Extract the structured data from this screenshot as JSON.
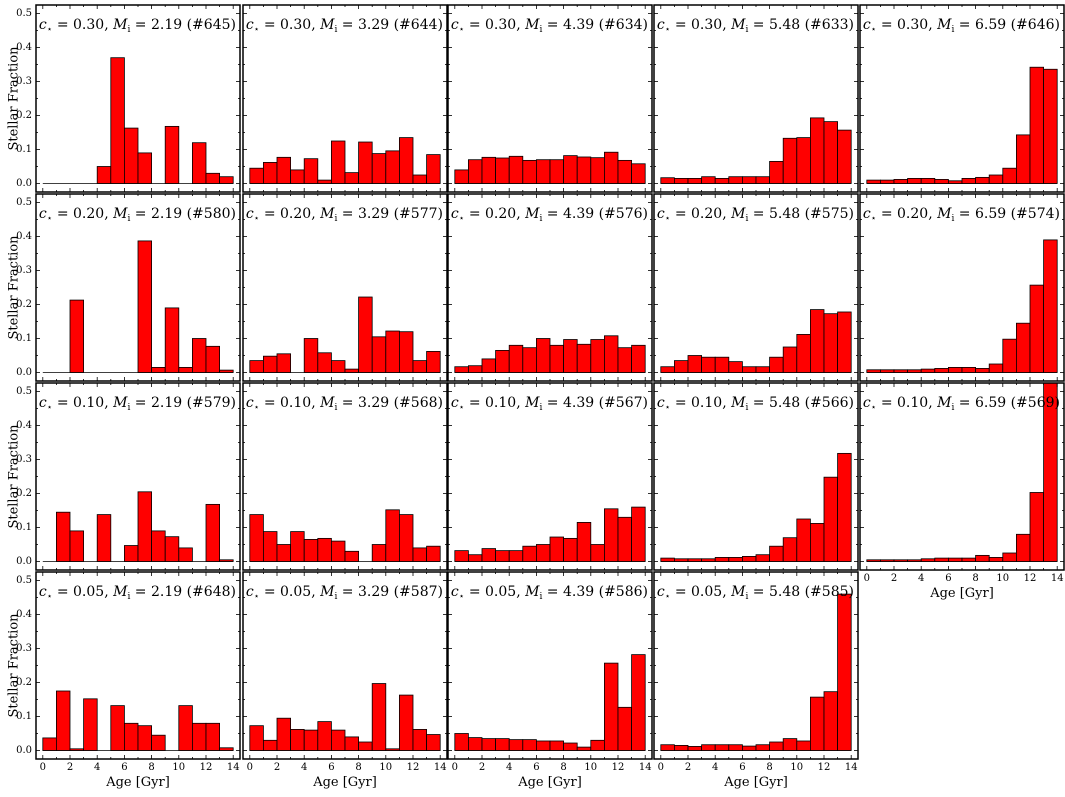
{
  "figure": {
    "ylabel": "Stellar Fraction",
    "xlabel": "Age [Gyr]",
    "bar_color": "#ff0000",
    "edge_color": "#000000",
    "xlim": [
      -0.5,
      14.5
    ],
    "ylim": [
      -0.025,
      0.525
    ],
    "xticks": [
      "0",
      "2",
      "4",
      "6",
      "8",
      "10",
      "12",
      "14"
    ],
    "yticks": [
      "0.0",
      "0.1",
      "0.2",
      "0.3",
      "0.4",
      "0.5"
    ],
    "bin_edges": [
      0,
      1,
      2,
      3,
      4,
      5,
      6,
      7,
      8,
      9,
      10,
      11,
      12,
      13,
      14
    ]
  },
  "chart_data": [
    {
      "type": "bar",
      "row": 0,
      "col": 0,
      "c_star": "0.30",
      "m_i": "2.19",
      "run": "645",
      "values": [
        0,
        0,
        0,
        0,
        0.05,
        0.37,
        0.163,
        0.09,
        0,
        0.168,
        0,
        0.12,
        0.03,
        0.02
      ]
    },
    {
      "type": "bar",
      "row": 0,
      "col": 1,
      "c_star": "0.30",
      "m_i": "3.29",
      "run": "644",
      "values": [
        0.045,
        0.062,
        0.077,
        0.04,
        0.073,
        0.01,
        0.125,
        0.032,
        0.122,
        0.088,
        0.096,
        0.135,
        0.025,
        0.085
      ]
    },
    {
      "type": "bar",
      "row": 0,
      "col": 2,
      "c_star": "0.30",
      "m_i": "4.39",
      "run": "634",
      "values": [
        0.04,
        0.07,
        0.077,
        0.075,
        0.08,
        0.068,
        0.07,
        0.07,
        0.082,
        0.078,
        0.076,
        0.092,
        0.068,
        0.058
      ]
    },
    {
      "type": "bar",
      "row": 0,
      "col": 3,
      "c_star": "0.30",
      "m_i": "5.48",
      "run": "633",
      "values": [
        0.017,
        0.015,
        0.015,
        0.02,
        0.015,
        0.02,
        0.02,
        0.02,
        0.065,
        0.133,
        0.135,
        0.193,
        0.182,
        0.157
      ]
    },
    {
      "type": "bar",
      "row": 0,
      "col": 4,
      "c_star": "0.30",
      "m_i": "6.59",
      "run": "646",
      "values": [
        0.01,
        0.01,
        0.012,
        0.015,
        0.015,
        0.012,
        0.008,
        0.015,
        0.018,
        0.025,
        0.045,
        0.143,
        0.342,
        0.336
      ]
    },
    {
      "type": "bar",
      "row": 1,
      "col": 0,
      "c_star": "0.20",
      "m_i": "2.19",
      "run": "580",
      "values": [
        0,
        0,
        0.213,
        0,
        0,
        0,
        0,
        0.387,
        0.015,
        0.19,
        0.015,
        0.1,
        0.077,
        0.007
      ]
    },
    {
      "type": "bar",
      "row": 1,
      "col": 1,
      "c_star": "0.20",
      "m_i": "3.29",
      "run": "577",
      "values": [
        0.035,
        0.048,
        0.055,
        0,
        0.1,
        0.058,
        0.035,
        0.01,
        0.222,
        0.105,
        0.122,
        0.12,
        0.035,
        0.062
      ]
    },
    {
      "type": "bar",
      "row": 1,
      "col": 2,
      "c_star": "0.20",
      "m_i": "4.39",
      "run": "576",
      "values": [
        0.017,
        0.02,
        0.04,
        0.065,
        0.08,
        0.073,
        0.1,
        0.08,
        0.097,
        0.083,
        0.097,
        0.108,
        0.073,
        0.08
      ]
    },
    {
      "type": "bar",
      "row": 1,
      "col": 3,
      "c_star": "0.20",
      "m_i": "5.48",
      "run": "575",
      "values": [
        0.017,
        0.035,
        0.05,
        0.045,
        0.045,
        0.032,
        0.017,
        0.017,
        0.045,
        0.075,
        0.112,
        0.185,
        0.173,
        0.178
      ]
    },
    {
      "type": "bar",
      "row": 1,
      "col": 4,
      "c_star": "0.20",
      "m_i": "6.59",
      "run": "574",
      "values": [
        0.008,
        0.008,
        0.008,
        0.008,
        0.01,
        0.012,
        0.015,
        0.015,
        0.012,
        0.025,
        0.098,
        0.145,
        0.257,
        0.39
      ]
    },
    {
      "type": "bar",
      "row": 2,
      "col": 0,
      "c_star": "0.10",
      "m_i": "2.19",
      "run": "579",
      "values": [
        0,
        0.145,
        0.09,
        0,
        0.138,
        0,
        0.047,
        0.205,
        0.09,
        0.073,
        0.04,
        0,
        0.168,
        0.005
      ]
    },
    {
      "type": "bar",
      "row": 2,
      "col": 1,
      "c_star": "0.10",
      "m_i": "3.29",
      "run": "568",
      "values": [
        0.138,
        0.088,
        0.05,
        0.088,
        0.065,
        0.068,
        0.06,
        0.03,
        0,
        0.05,
        0.152,
        0.138,
        0.04,
        0.045
      ]
    },
    {
      "type": "bar",
      "row": 2,
      "col": 2,
      "c_star": "0.10",
      "m_i": "4.39",
      "run": "567",
      "values": [
        0.032,
        0.02,
        0.038,
        0.032,
        0.032,
        0.045,
        0.05,
        0.072,
        0.068,
        0.115,
        0.05,
        0.155,
        0.13,
        0.16
      ]
    },
    {
      "type": "bar",
      "row": 2,
      "col": 3,
      "c_star": "0.10",
      "m_i": "5.48",
      "run": "566",
      "values": [
        0.01,
        0.008,
        0.008,
        0.008,
        0.012,
        0.012,
        0.015,
        0.02,
        0.045,
        0.07,
        0.125,
        0.112,
        0.248,
        0.318
      ]
    },
    {
      "type": "bar",
      "row": 2,
      "col": 4,
      "c_star": "0.10",
      "m_i": "6.59",
      "run": "569",
      "values": [
        0.005,
        0.005,
        0.005,
        0.005,
        0.008,
        0.01,
        0.01,
        0.01,
        0.018,
        0.012,
        0.025,
        0.08,
        0.203,
        0.53
      ]
    },
    {
      "type": "bar",
      "row": 3,
      "col": 0,
      "c_star": "0.05",
      "m_i": "2.19",
      "run": "648",
      "values": [
        0.037,
        0.175,
        0.005,
        0.152,
        0,
        0.132,
        0.08,
        0.073,
        0.045,
        0,
        0.132,
        0.08,
        0.08,
        0.008
      ]
    },
    {
      "type": "bar",
      "row": 3,
      "col": 1,
      "c_star": "0.05",
      "m_i": "3.29",
      "run": "587",
      "values": [
        0.073,
        0.03,
        0.095,
        0.062,
        0.06,
        0.085,
        0.06,
        0.04,
        0.025,
        0.197,
        0.005,
        0.163,
        0.062,
        0.047
      ]
    },
    {
      "type": "bar",
      "row": 3,
      "col": 2,
      "c_star": "0.05",
      "m_i": "4.39",
      "run": "586",
      "values": [
        0.05,
        0.038,
        0.035,
        0.035,
        0.032,
        0.032,
        0.028,
        0.028,
        0.022,
        0.01,
        0.03,
        0.257,
        0.127,
        0.282
      ]
    },
    {
      "type": "bar",
      "row": 3,
      "col": 3,
      "c_star": "0.05",
      "m_i": "5.48",
      "run": "585",
      "values": [
        0.017,
        0.015,
        0.012,
        0.017,
        0.017,
        0.017,
        0.013,
        0.017,
        0.025,
        0.035,
        0.028,
        0.157,
        0.173,
        0.46
      ]
    }
  ]
}
